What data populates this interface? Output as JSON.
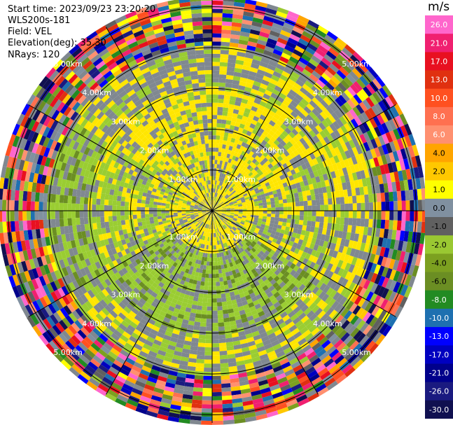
{
  "header": {
    "start_time": "Start time: 2023/09/23 23:20:20",
    "instrument": "WLS200s-181",
    "field": "Field: VEL",
    "elevation": "Elevation(deg): 35.30",
    "nrays": "NRays: 120"
  },
  "chart_data": {
    "type": "polar-ppi",
    "field": "VEL",
    "units": "m/s",
    "nrays": 120,
    "elevation_deg": 35.3,
    "range_rings_km": [
      1.0,
      2.0,
      3.0,
      4.0,
      5.0
    ],
    "range_ring_labels": [
      "1.00km",
      "2.00km",
      "3.00km",
      "4.00km",
      "5.00km"
    ],
    "max_range_km": 5.2,
    "radial_spokes_deg": [
      0,
      30,
      60,
      90,
      120,
      150,
      180,
      210,
      240,
      270,
      300,
      330
    ],
    "colorbar": {
      "ticks": [
        "26.0",
        "21.0",
        "17.0",
        "13.0",
        "10.0",
        "8.0",
        "6.0",
        "4.0",
        "2.0",
        "1.0",
        "0.0",
        "-1.0",
        "-2.0",
        "-4.0",
        "-6.0",
        "-8.0",
        "-10.0",
        "-13.0",
        "-17.0",
        "-21.0",
        "-26.0",
        "-30.0"
      ],
      "colors": [
        "#ff66cc",
        "#f02070",
        "#e81020",
        "#e03010",
        "#ff5020",
        "#ff7050",
        "#ff9070",
        "#ffa500",
        "#ffc800",
        "#ffff00",
        "#8090a0",
        "#606060",
        "#9ac832",
        "#7ca020",
        "#6b8e23",
        "#228b22",
        "#1e70b0",
        "#0000ff",
        "#0000c0",
        "#00008b",
        "#1a1a80",
        "#101050"
      ]
    },
    "velocity_regions": [
      {
        "ring": "0-1.2km",
        "dominant_values": [
          2.0,
          0.0
        ]
      },
      {
        "ring": "1.2-3.0km",
        "dominant_values": [
          -2.0,
          0.0,
          2.0
        ]
      },
      {
        "ring": "3.0-4.0km",
        "dominant_values": [
          0.0,
          2.0,
          -2.0
        ]
      },
      {
        "ring": "4.0-5.2km",
        "dominant_values": [
          "noise"
        ]
      }
    ]
  }
}
